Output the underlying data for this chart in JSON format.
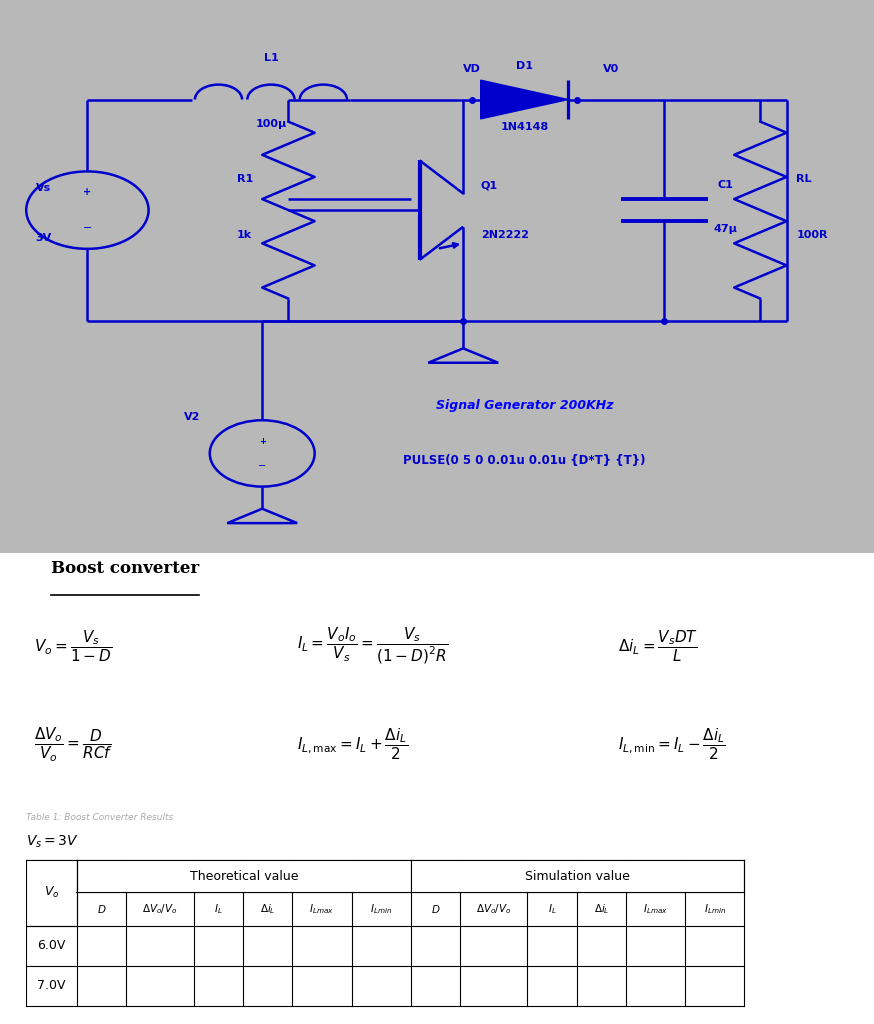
{
  "circuit_bg_color": "#b8b8b8",
  "circuit_line_color": "#0000cc",
  "circuit_text_color": "#0000cc",
  "page_bg_color": "#ffffff",
  "title_boost": "Boost converter",
  "sig_gen_label": "Signal Generator 200KHz",
  "pulse_label": "PULSE(0 5 0 0.01u 0.01u {D*T} {T})",
  "table_rows": [
    "6.0V",
    "7.0V"
  ],
  "dotted_text": "Table 1: Boost Converter Results"
}
